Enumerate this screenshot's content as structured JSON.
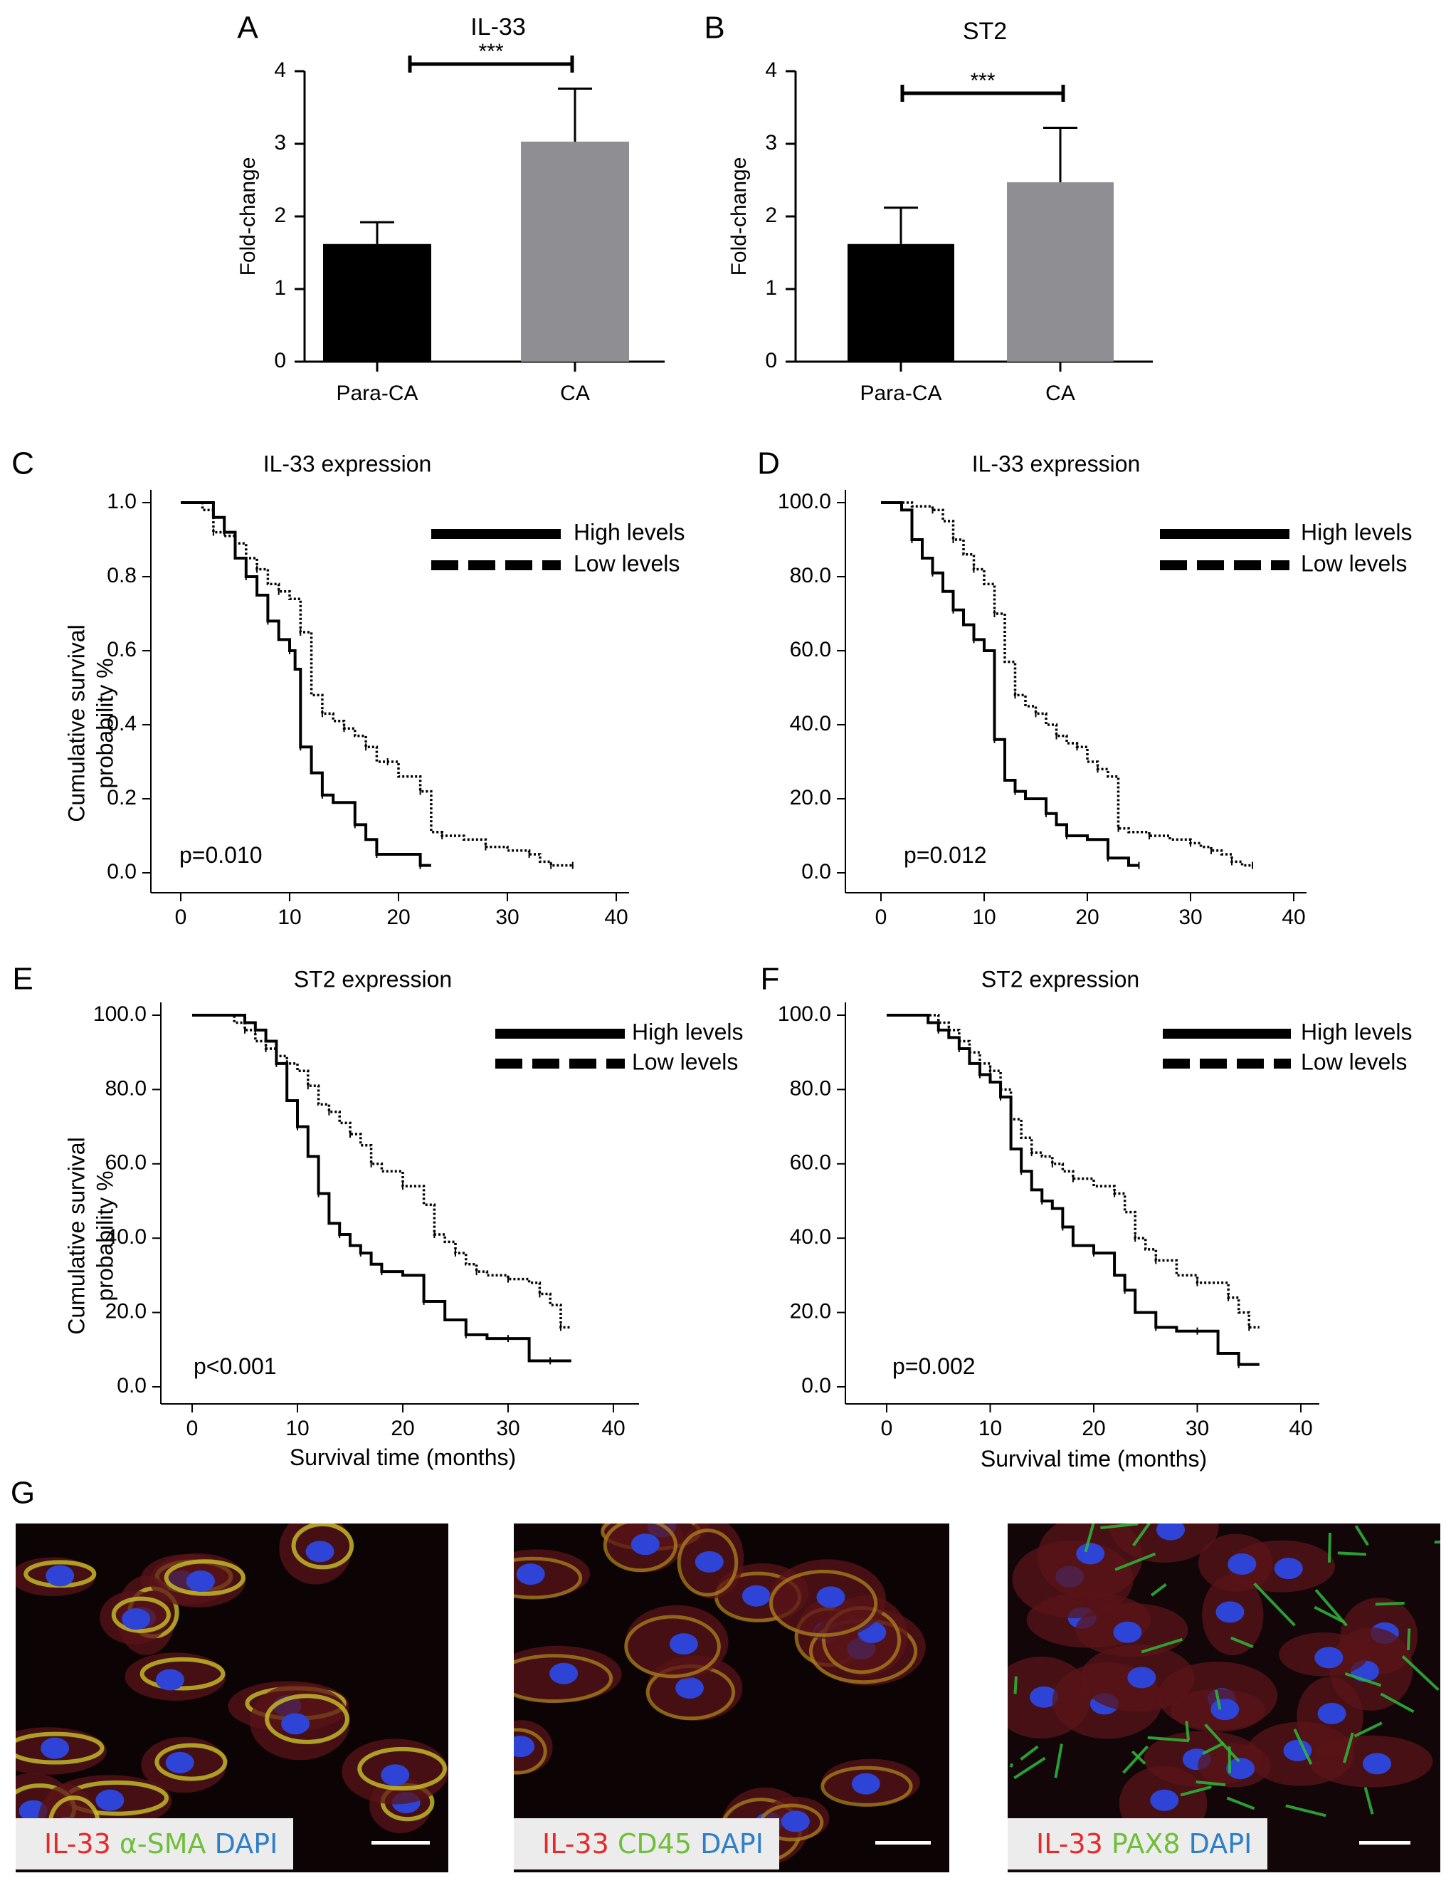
{
  "figure": {
    "panel_letters": [
      "A",
      "B",
      "C",
      "D",
      "E",
      "F",
      "G"
    ]
  },
  "chart_data": [
    {
      "panel": "A",
      "type": "bar",
      "title": "IL-33",
      "ylabel": "Fold-change",
      "xlabel": "",
      "categories": [
        "Para-CA",
        "CA"
      ],
      "values": [
        1.62,
        3.03
      ],
      "error": [
        0.3,
        0.73
      ],
      "ylim": [
        0,
        4
      ],
      "yticks": [
        "0",
        "1",
        "2",
        "3",
        "4"
      ],
      "significance": "***",
      "colors": [
        "#000000",
        "#8e8e93"
      ]
    },
    {
      "panel": "B",
      "type": "bar",
      "title": "ST2",
      "ylabel": "Fold-change",
      "xlabel": "",
      "categories": [
        "Para-CA",
        "CA"
      ],
      "values": [
        1.62,
        2.47
      ],
      "error": [
        0.5,
        0.75
      ],
      "ylim": [
        0,
        4
      ],
      "yticks": [
        "0",
        "1",
        "2",
        "3",
        "4"
      ],
      "significance": "***",
      "colors": [
        "#000000",
        "#8e8e93"
      ]
    },
    {
      "panel": "C",
      "type": "line",
      "title": "IL-33 expression",
      "ylabel": "Cumulative survival probability %",
      "xlabel": "",
      "xlim": [
        0,
        40
      ],
      "ylim": [
        0,
        1
      ],
      "xticks": [
        "0",
        "10",
        "20",
        "30",
        "40"
      ],
      "yticks": [
        "0.0",
        "0.2",
        "0.4",
        "0.6",
        "0.8",
        "1.0"
      ],
      "pvalue": "p=0.010",
      "legend": [
        "High levels",
        "Low levels"
      ],
      "legend_position": "top-right",
      "series": [
        {
          "name": "High levels",
          "style": "solid",
          "x": [
            0,
            3,
            4,
            5,
            6,
            7,
            8,
            9,
            10,
            10.5,
            11,
            12,
            13,
            14,
            16,
            17,
            18,
            20,
            22,
            23
          ],
          "y": [
            1.0,
            0.96,
            0.92,
            0.85,
            0.8,
            0.75,
            0.68,
            0.63,
            0.6,
            0.55,
            0.34,
            0.27,
            0.21,
            0.19,
            0.13,
            0.09,
            0.05,
            0.05,
            0.02,
            0.02
          ]
        },
        {
          "name": "Low levels",
          "style": "dotted",
          "x": [
            0,
            2,
            3,
            4,
            5,
            6,
            7,
            8,
            9,
            10,
            11,
            12,
            13,
            14,
            15,
            16,
            17,
            18,
            19,
            20,
            22,
            23,
            24,
            26,
            28,
            30,
            32,
            33,
            34,
            35,
            36
          ],
          "y": [
            1.0,
            0.98,
            0.92,
            0.91,
            0.89,
            0.85,
            0.82,
            0.78,
            0.76,
            0.74,
            0.65,
            0.48,
            0.43,
            0.41,
            0.39,
            0.37,
            0.34,
            0.3,
            0.3,
            0.26,
            0.22,
            0.11,
            0.1,
            0.09,
            0.07,
            0.06,
            0.05,
            0.03,
            0.02,
            0.02,
            0.02
          ]
        }
      ]
    },
    {
      "panel": "D",
      "type": "line",
      "title": "IL-33 expression",
      "ylabel": "",
      "xlabel": "",
      "xlim": [
        0,
        40
      ],
      "ylim": [
        0,
        100
      ],
      "xticks": [
        "0",
        "10",
        "20",
        "30",
        "40"
      ],
      "yticks": [
        "0.0",
        "20.0",
        "40.0",
        "60.0",
        "80.0",
        "100.0"
      ],
      "pvalue": "p=0.012",
      "legend": [
        "High levels",
        "Low levels"
      ],
      "legend_position": "top-right",
      "series": [
        {
          "name": "High levels",
          "style": "solid",
          "x": [
            0,
            2,
            3,
            4,
            5,
            6,
            7,
            8,
            9,
            10,
            11,
            12,
            13,
            14,
            16,
            17,
            18,
            20,
            22,
            24,
            25
          ],
          "y": [
            100,
            98,
            90,
            85,
            81,
            76,
            71,
            67,
            63,
            60,
            36,
            25,
            22,
            20,
            16,
            13,
            10,
            9,
            4,
            2,
            2
          ]
        },
        {
          "name": "Low levels",
          "style": "dotted",
          "x": [
            0,
            3,
            5,
            6,
            7,
            8,
            9,
            10,
            11,
            12,
            13,
            14,
            15,
            16,
            17,
            18,
            19,
            20,
            21,
            22,
            23,
            24,
            26,
            28,
            30,
            31,
            32,
            33,
            34,
            35,
            36
          ],
          "y": [
            100,
            99,
            98,
            95,
            90,
            86,
            82,
            78,
            70,
            57,
            48,
            45,
            43,
            40,
            37,
            35,
            34,
            30,
            28,
            26,
            12,
            11,
            10,
            9,
            8,
            7,
            6,
            5,
            3,
            2,
            2
          ]
        }
      ]
    },
    {
      "panel": "E",
      "type": "line",
      "title": "ST2 expression",
      "ylabel": "Cumulative survival probability %",
      "xlabel": "Survival time (months)",
      "xlim": [
        0,
        40
      ],
      "ylim": [
        0,
        100
      ],
      "xticks": [
        "0",
        "10",
        "20",
        "30",
        "40"
      ],
      "yticks": [
        "0.0",
        "20.0",
        "40.0",
        "60.0",
        "80.0",
        "100.0"
      ],
      "pvalue": "p<0.001",
      "legend": [
        "High levels",
        "Low levels"
      ],
      "legend_position": "top-right",
      "series": [
        {
          "name": "High levels",
          "style": "solid",
          "x": [
            0,
            5,
            6,
            7,
            8,
            9,
            10,
            11,
            12,
            13,
            14,
            15,
            16,
            17,
            18,
            20,
            22,
            24,
            26,
            28,
            30,
            32,
            34,
            36
          ],
          "y": [
            100,
            98,
            96,
            93,
            87,
            77,
            70,
            62,
            52,
            44,
            41,
            38,
            36,
            33,
            31,
            30,
            23,
            18,
            14,
            13,
            13,
            7,
            7,
            7
          ]
        },
        {
          "name": "Low levels",
          "style": "dotted",
          "x": [
            0,
            4,
            5,
            6,
            7,
            8,
            9,
            10,
            11,
            12,
            13,
            14,
            15,
            16,
            17,
            18,
            20,
            22,
            23,
            24,
            25,
            26,
            27,
            28,
            30,
            32,
            33,
            34,
            35,
            36
          ],
          "y": [
            100,
            98,
            96,
            93,
            91,
            89,
            87,
            85,
            81,
            76,
            74,
            71,
            68,
            65,
            60,
            58,
            54,
            49,
            41,
            39,
            36,
            33,
            31,
            30,
            29,
            28,
            25,
            22,
            16,
            16
          ]
        }
      ]
    },
    {
      "panel": "F",
      "type": "line",
      "title": "ST2 expression",
      "ylabel": "",
      "xlabel": "Survival time (months)",
      "xlim": [
        0,
        40
      ],
      "ylim": [
        0,
        100
      ],
      "xticks": [
        "0",
        "10",
        "20",
        "30",
        "40"
      ],
      "yticks": [
        "0.0",
        "20.0",
        "40.0",
        "60.0",
        "80.0",
        "100.0"
      ],
      "pvalue": "p=0.002",
      "legend": [
        "High levels",
        "Low levels"
      ],
      "legend_position": "top-right",
      "series": [
        {
          "name": "High levels",
          "style": "solid",
          "x": [
            0,
            4,
            5,
            6,
            7,
            8,
            9,
            10,
            11,
            12,
            13,
            14,
            15,
            16,
            17,
            18,
            20,
            22,
            23,
            24,
            26,
            28,
            30,
            32,
            34,
            36
          ],
          "y": [
            100,
            98,
            96,
            94,
            91,
            87,
            84,
            82,
            78,
            64,
            58,
            53,
            50,
            48,
            43,
            38,
            36,
            30,
            26,
            20,
            16,
            15,
            15,
            9,
            6,
            6
          ]
        },
        {
          "name": "Low levels",
          "style": "dotted",
          "x": [
            0,
            5,
            6,
            7,
            8,
            9,
            10,
            11,
            12,
            13,
            14,
            15,
            16,
            17,
            18,
            20,
            22,
            23,
            24,
            25,
            26,
            28,
            30,
            32,
            33,
            34,
            35,
            36
          ],
          "y": [
            100,
            98,
            96,
            93,
            90,
            87,
            85,
            80,
            72,
            67,
            63,
            62,
            60,
            58,
            56,
            54,
            52,
            47,
            40,
            37,
            34,
            30,
            28,
            28,
            24,
            20,
            16,
            16
          ]
        }
      ]
    }
  ],
  "micrographs": [
    {
      "id": "g1",
      "label_parts": [
        {
          "text": "IL-33",
          "color": "#e8292a"
        },
        {
          "text": "α-SMA",
          "color": "#6fbf3b"
        },
        {
          "text": "DAPI",
          "color": "#2f7fc6"
        }
      ]
    },
    {
      "id": "g2",
      "label_parts": [
        {
          "text": "IL-33",
          "color": "#e8292a"
        },
        {
          "text": "CD45",
          "color": "#6fbf3b"
        },
        {
          "text": "DAPI",
          "color": "#2f7fc6"
        }
      ]
    },
    {
      "id": "g3",
      "label_parts": [
        {
          "text": "IL-33",
          "color": "#e8292a"
        },
        {
          "text": "PAX8",
          "color": "#6fbf3b"
        },
        {
          "text": "DAPI",
          "color": "#2f7fc6"
        }
      ]
    }
  ]
}
